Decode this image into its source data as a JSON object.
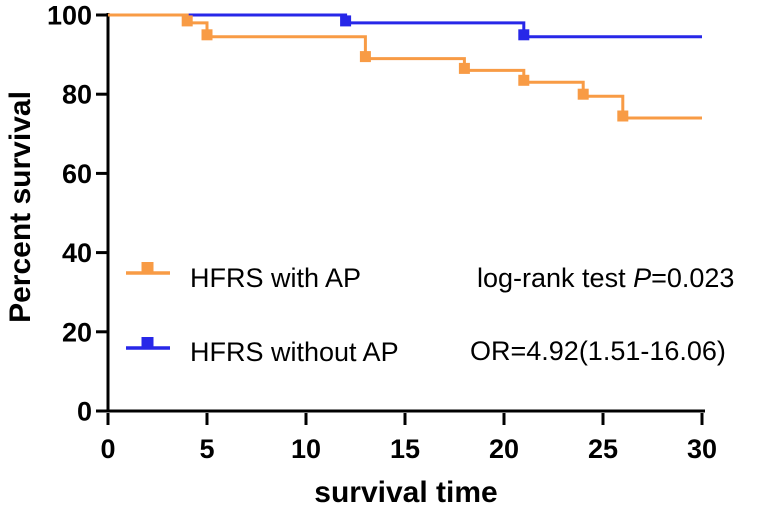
{
  "chart_data": {
    "type": "line",
    "subtype": "kaplan-meier-step",
    "title": "",
    "xlabel": "survival time",
    "ylabel": "Percent survival",
    "xlim": [
      0,
      30
    ],
    "ylim": [
      0,
      100
    ],
    "x_ticks": [
      0,
      5,
      10,
      15,
      20,
      25,
      30
    ],
    "y_ticks": [
      0,
      20,
      40,
      60,
      80,
      100
    ],
    "grid": false,
    "legend_position": "inside-left-middle",
    "series": [
      {
        "name": "HFRS with AP",
        "color": "#F89B45",
        "marker": "square",
        "start": [
          0,
          100
        ],
        "steps": [
          [
            4,
            98
          ],
          [
            5,
            94.5
          ],
          [
            13,
            89
          ],
          [
            18,
            86
          ],
          [
            21,
            83
          ],
          [
            24,
            79.5
          ],
          [
            26,
            74
          ]
        ],
        "end_x": 30
      },
      {
        "name": "HFRS without AP",
        "color": "#2727E8",
        "marker": "square",
        "start": [
          0,
          100
        ],
        "steps": [
          [
            12,
            98
          ],
          [
            21,
            94.5
          ]
        ],
        "end_x": 30
      }
    ],
    "annotations": [
      "log-rank test P=0.023",
      "OR=4.92(1.51-16.06)"
    ]
  },
  "legend": {
    "items": [
      {
        "label": "HFRS with AP"
      },
      {
        "label": "HFRS without AP"
      }
    ]
  },
  "stats": {
    "logrank_prefix": "log-rank test ",
    "logrank_p_symbol": "P",
    "logrank_value": "=0.023",
    "or_text": "OR=4.92(1.51-16.06)"
  },
  "colors": {
    "orange": "#F89B45",
    "blue": "#2727E8",
    "axis": "#000000",
    "background": "#FFFFFF"
  }
}
